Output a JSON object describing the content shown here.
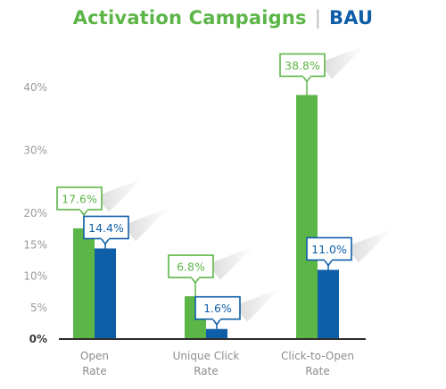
{
  "chart_data": {
    "type": "bar",
    "title_parts": [
      "Activation Campaigns",
      "|",
      "BAU"
    ],
    "categories": [
      [
        "Open",
        "Rate"
      ],
      [
        "Unique Click",
        "Rate"
      ],
      [
        "Click-to-Open",
        "Rate"
      ]
    ],
    "series": [
      {
        "name": "Activation Campaigns",
        "color": "#5cb547",
        "values": [
          17.6,
          6.8,
          38.8
        ],
        "labels": [
          "17.6%",
          "6.8%",
          "38.8%"
        ]
      },
      {
        "name": "BAU",
        "color": "#0e5ea8",
        "values": [
          14.4,
          1.6,
          11.0
        ],
        "labels": [
          "14.4%",
          "1.6%",
          "11.0%"
        ]
      }
    ],
    "yticks": [
      {
        "value": 0,
        "label": "0%"
      },
      {
        "value": 5,
        "label": "5%"
      },
      {
        "value": 10,
        "label": "10%"
      },
      {
        "value": 15,
        "label": "15%"
      },
      {
        "value": 20,
        "label": "20%"
      },
      {
        "value": 30,
        "label": "30%"
      },
      {
        "value": 40,
        "label": "40%"
      }
    ],
    "ylim": [
      0,
      40
    ],
    "grid": false,
    "legend": "title"
  }
}
